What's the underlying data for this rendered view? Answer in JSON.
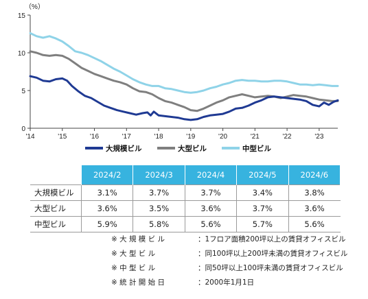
{
  "chart_data": {
    "type": "line",
    "unit_label": "（%）",
    "ylim": [
      0,
      15
    ],
    "y_ticks": [
      "0",
      "5",
      "10",
      "15"
    ],
    "x_ticks": [
      "'14",
      "'15",
      "'16",
      "'17",
      "'18",
      "'19",
      "'20",
      "'21",
      "'22",
      "'23"
    ],
    "grid": false,
    "legend_position": "bottom",
    "series": [
      {
        "name": "大規模ビル",
        "color": "#1f3a93",
        "points": [
          [
            2014.0,
            6.9
          ],
          [
            2014.2,
            6.7
          ],
          [
            2014.4,
            6.3
          ],
          [
            2014.6,
            6.2
          ],
          [
            2014.8,
            6.5
          ],
          [
            2015.0,
            6.6
          ],
          [
            2015.15,
            6.3
          ],
          [
            2015.3,
            5.6
          ],
          [
            2015.5,
            4.9
          ],
          [
            2015.7,
            4.3
          ],
          [
            2015.9,
            4.0
          ],
          [
            2016.1,
            3.5
          ],
          [
            2016.3,
            3.0
          ],
          [
            2016.5,
            2.7
          ],
          [
            2016.7,
            2.4
          ],
          [
            2016.9,
            2.2
          ],
          [
            2017.1,
            2.0
          ],
          [
            2017.3,
            1.8
          ],
          [
            2017.5,
            2.0
          ],
          [
            2017.65,
            2.1
          ],
          [
            2017.75,
            1.7
          ],
          [
            2017.85,
            2.2
          ],
          [
            2018.0,
            1.7
          ],
          [
            2018.2,
            1.6
          ],
          [
            2018.4,
            1.5
          ],
          [
            2018.6,
            1.4
          ],
          [
            2018.8,
            1.2
          ],
          [
            2019.0,
            1.1
          ],
          [
            2019.2,
            1.2
          ],
          [
            2019.4,
            1.5
          ],
          [
            2019.6,
            1.7
          ],
          [
            2019.8,
            1.8
          ],
          [
            2020.0,
            1.9
          ],
          [
            2020.2,
            2.2
          ],
          [
            2020.4,
            2.6
          ],
          [
            2020.6,
            2.7
          ],
          [
            2020.8,
            3.0
          ],
          [
            2021.0,
            3.4
          ],
          [
            2021.2,
            3.7
          ],
          [
            2021.4,
            4.1
          ],
          [
            2021.6,
            4.2
          ],
          [
            2021.8,
            4.1
          ],
          [
            2022.0,
            4.0
          ],
          [
            2022.2,
            3.9
          ],
          [
            2022.4,
            3.8
          ],
          [
            2022.6,
            3.6
          ],
          [
            2022.8,
            3.1
          ],
          [
            2023.0,
            2.9
          ],
          [
            2023.15,
            3.4
          ],
          [
            2023.3,
            3.1
          ],
          [
            2023.45,
            3.5
          ],
          [
            2023.58,
            3.7
          ]
        ]
      },
      {
        "name": "大型ビル",
        "color": "#7f7f7f",
        "points": [
          [
            2014.0,
            10.2
          ],
          [
            2014.2,
            10.0
          ],
          [
            2014.4,
            9.7
          ],
          [
            2014.6,
            9.6
          ],
          [
            2014.8,
            9.7
          ],
          [
            2015.0,
            9.6
          ],
          [
            2015.2,
            9.2
          ],
          [
            2015.4,
            8.6
          ],
          [
            2015.6,
            8.0
          ],
          [
            2015.8,
            7.6
          ],
          [
            2016.0,
            7.2
          ],
          [
            2016.2,
            6.9
          ],
          [
            2016.4,
            6.6
          ],
          [
            2016.6,
            6.3
          ],
          [
            2016.8,
            6.1
          ],
          [
            2017.0,
            5.8
          ],
          [
            2017.2,
            5.3
          ],
          [
            2017.4,
            4.9
          ],
          [
            2017.6,
            4.8
          ],
          [
            2017.8,
            4.5
          ],
          [
            2018.0,
            4.0
          ],
          [
            2018.2,
            3.6
          ],
          [
            2018.4,
            3.4
          ],
          [
            2018.6,
            3.1
          ],
          [
            2018.8,
            2.8
          ],
          [
            2019.0,
            2.4
          ],
          [
            2019.2,
            2.3
          ],
          [
            2019.4,
            2.6
          ],
          [
            2019.6,
            3.0
          ],
          [
            2019.8,
            3.4
          ],
          [
            2020.0,
            3.7
          ],
          [
            2020.2,
            4.1
          ],
          [
            2020.4,
            4.3
          ],
          [
            2020.6,
            4.5
          ],
          [
            2020.8,
            4.3
          ],
          [
            2021.0,
            4.1
          ],
          [
            2021.2,
            4.2
          ],
          [
            2021.4,
            4.3
          ],
          [
            2021.6,
            4.2
          ],
          [
            2021.8,
            4.0
          ],
          [
            2022.0,
            4.2
          ],
          [
            2022.2,
            4.4
          ],
          [
            2022.4,
            4.3
          ],
          [
            2022.6,
            4.2
          ],
          [
            2022.8,
            4.0
          ],
          [
            2023.0,
            3.8
          ],
          [
            2023.2,
            3.7
          ],
          [
            2023.4,
            3.6
          ],
          [
            2023.58,
            3.6
          ]
        ]
      },
      {
        "name": "中型ビル",
        "color": "#8fd3e8",
        "points": [
          [
            2014.0,
            12.6
          ],
          [
            2014.2,
            12.2
          ],
          [
            2014.4,
            12.0
          ],
          [
            2014.6,
            12.2
          ],
          [
            2014.8,
            11.9
          ],
          [
            2015.0,
            11.5
          ],
          [
            2015.2,
            10.9
          ],
          [
            2015.4,
            10.2
          ],
          [
            2015.6,
            10.0
          ],
          [
            2015.8,
            9.7
          ],
          [
            2016.0,
            9.3
          ],
          [
            2016.2,
            8.9
          ],
          [
            2016.4,
            8.4
          ],
          [
            2016.6,
            7.9
          ],
          [
            2016.8,
            7.5
          ],
          [
            2017.0,
            7.0
          ],
          [
            2017.2,
            6.5
          ],
          [
            2017.4,
            6.1
          ],
          [
            2017.6,
            5.8
          ],
          [
            2017.8,
            5.6
          ],
          [
            2018.0,
            5.6
          ],
          [
            2018.2,
            5.3
          ],
          [
            2018.4,
            5.2
          ],
          [
            2018.6,
            5.0
          ],
          [
            2018.8,
            4.8
          ],
          [
            2019.0,
            4.7
          ],
          [
            2019.2,
            4.8
          ],
          [
            2019.4,
            5.0
          ],
          [
            2019.6,
            5.3
          ],
          [
            2019.8,
            5.5
          ],
          [
            2020.0,
            5.8
          ],
          [
            2020.2,
            6.0
          ],
          [
            2020.4,
            6.3
          ],
          [
            2020.6,
            6.4
          ],
          [
            2020.8,
            6.3
          ],
          [
            2021.0,
            6.3
          ],
          [
            2021.2,
            6.2
          ],
          [
            2021.4,
            6.2
          ],
          [
            2021.6,
            6.3
          ],
          [
            2021.8,
            6.3
          ],
          [
            2022.0,
            6.2
          ],
          [
            2022.2,
            6.0
          ],
          [
            2022.4,
            5.8
          ],
          [
            2022.6,
            5.8
          ],
          [
            2022.8,
            5.7
          ],
          [
            2023.0,
            5.8
          ],
          [
            2023.2,
            5.7
          ],
          [
            2023.4,
            5.6
          ],
          [
            2023.58,
            5.6
          ]
        ]
      }
    ]
  },
  "table": {
    "columns": [
      "2024/2",
      "2024/3",
      "2024/4",
      "2024/5",
      "2024/6"
    ],
    "rows": [
      {
        "label": "大規模ビル",
        "values": [
          "3.1%",
          "3.7%",
          "3.7%",
          "3.4%",
          "3.8%"
        ]
      },
      {
        "label": "大型ビル",
        "values": [
          "3.6%",
          "3.5%",
          "3.6%",
          "3.7%",
          "3.6%"
        ]
      },
      {
        "label": "中型ビル",
        "values": [
          "5.9%",
          "5.8%",
          "5.6%",
          "5.7%",
          "5.6%"
        ]
      }
    ]
  },
  "notes": [
    {
      "label": "※ 大 規 模 ビ ル",
      "text": "：1フロア面積200坪以上の賃貸オフィスビル"
    },
    {
      "label": "※ 大 型 ビ ル",
      "text": "：同100坪以上200坪未満の賃貸オフィスビル"
    },
    {
      "label": "※ 中 型 ビ ル",
      "text": "：同50坪以上100坪未満の賃貸オフィスビル"
    },
    {
      "label": "※ 統 計 開 始 日",
      "text": "：2000年1月1日"
    }
  ]
}
